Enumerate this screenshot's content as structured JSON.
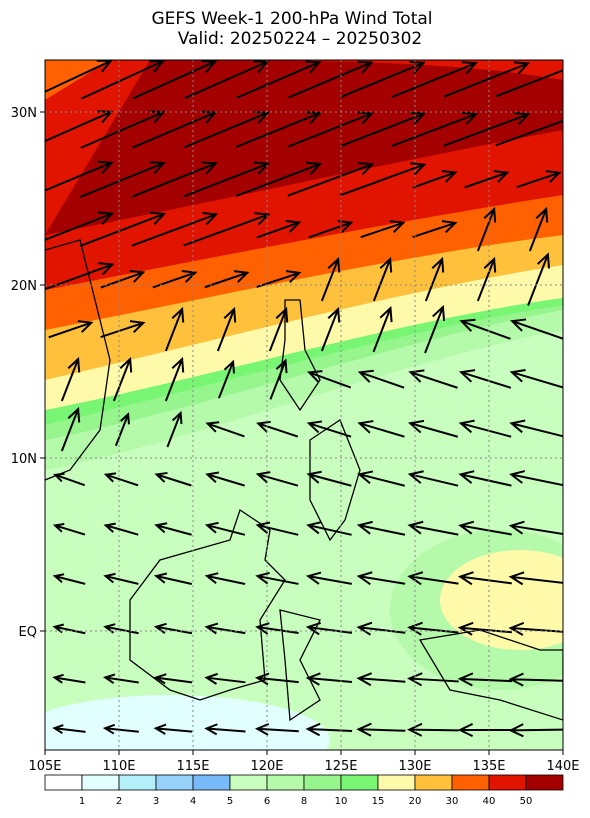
{
  "header": {
    "title": "GEFS Week-1 200-hPa Wind Total",
    "subtitle": "Valid: 20250224 – 20250302"
  },
  "map": {
    "lon_labels": [
      "105E",
      "110E",
      "115E",
      "120E",
      "125E",
      "130E",
      "135E",
      "140E"
    ],
    "lat_labels": [
      "30N",
      "20N",
      "10N",
      "EQ"
    ]
  },
  "colorbar": {
    "labels": [
      "1",
      "2",
      "3",
      "4",
      "5",
      "6",
      "8",
      "10",
      "15",
      "20",
      "30",
      "40",
      "50"
    ],
    "colors": [
      "#ffffff",
      "#e1ffff",
      "#b4f0fa",
      "#96d2fa",
      "#78b9fa",
      "#c8ffbe",
      "#b4faaa",
      "#96f58c",
      "#78f573",
      "#fffaaa",
      "#ffc03c",
      "#ff6000",
      "#e11400",
      "#a50000"
    ]
  }
}
